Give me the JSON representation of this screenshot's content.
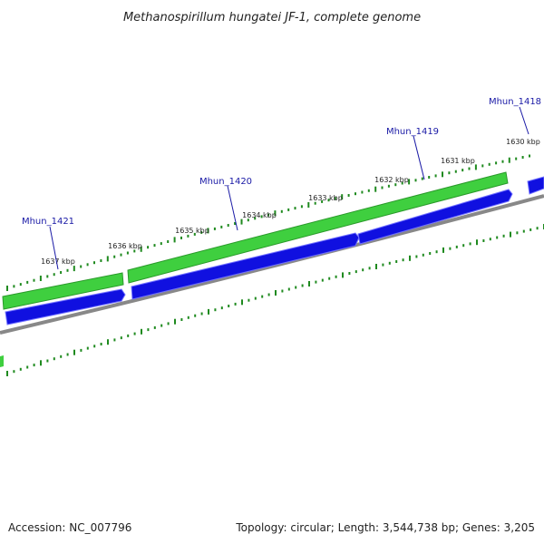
{
  "title": "Methanospirillum hungatei JF-1, complete genome",
  "footer": {
    "accession": "Accession: NC_007796",
    "topology_info": "Topology: circular; Length: 3,544,738 bp; Genes: 3,205"
  },
  "map": {
    "tick_labels": [
      {
        "kbp": 1630,
        "label": "1630 kbp"
      },
      {
        "kbp": 1631,
        "label": "1631 kbp"
      },
      {
        "kbp": 1632,
        "label": "1632 kbp"
      },
      {
        "kbp": 1633,
        "label": "1633 kbp"
      },
      {
        "kbp": 1634,
        "label": "1634 kbp"
      },
      {
        "kbp": 1635,
        "label": "1635 kbp"
      },
      {
        "kbp": 1636,
        "label": "1636 kbp"
      },
      {
        "kbp": 1637,
        "label": "1637 kbp"
      }
    ],
    "genes": [
      {
        "name": "Mhun_1418"
      },
      {
        "name": "Mhun_1419"
      },
      {
        "name": "Mhun_1420"
      },
      {
        "name": "Mhun_1421"
      }
    ],
    "colors": {
      "cds_track": "#3fcf3f",
      "cds_track_dark": "#2a9a2a",
      "gene_track": "#1010e0",
      "gene_track_light": "#7070ff",
      "backbone": "#888888",
      "ticks": "#1f8a1f",
      "gene_label": "#1a1aa6"
    }
  }
}
